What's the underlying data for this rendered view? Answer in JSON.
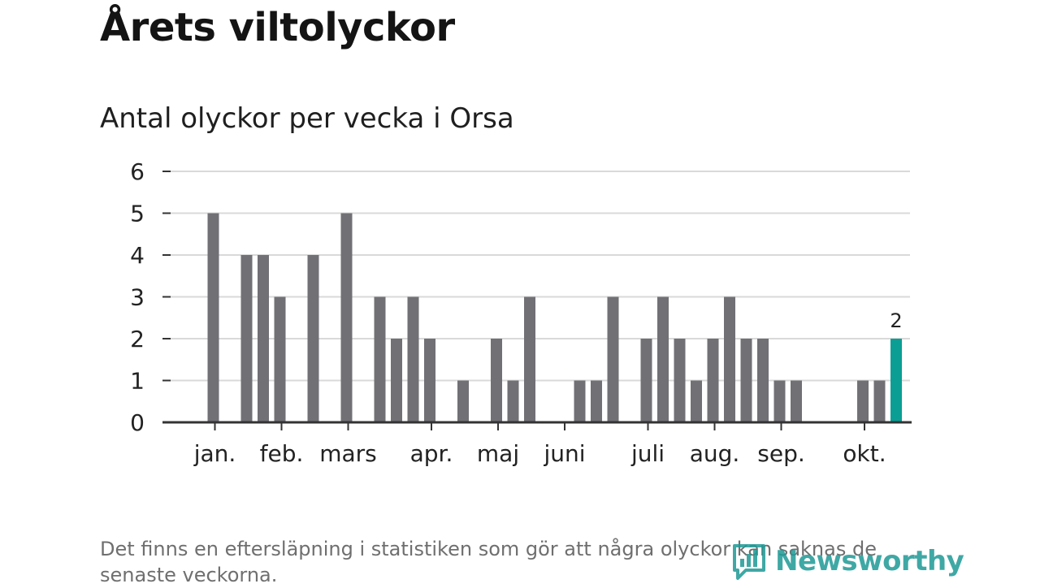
{
  "title": "Årets viltolyckor",
  "subtitle": "Antal olyckor per vecka i Orsa",
  "footnote": "Det finns en eftersläpning i statistiken som gör att några olyckor kan saknas de senaste veckorna.",
  "logo": {
    "text": "Newsworthy",
    "icon": "bar-chart-speech-icon"
  },
  "colors": {
    "bar": "#717075",
    "highlight": "#0a9e95",
    "grid": "#d9d9d9",
    "axis": "#333333",
    "logo": "#1e9a96"
  },
  "chart_data": {
    "type": "bar",
    "title": "Antal olyckor per vecka i Orsa",
    "xlabel": "",
    "ylabel": "",
    "ylim": [
      0,
      6
    ],
    "yticks": [
      0,
      1,
      2,
      3,
      4,
      5,
      6
    ],
    "grid": true,
    "weeks": [
      1,
      2,
      3,
      4,
      5,
      6,
      7,
      8,
      9,
      10,
      11,
      12,
      13,
      14,
      15,
      16,
      17,
      18,
      19,
      20,
      21,
      22,
      23,
      24,
      25,
      26,
      27,
      28,
      29,
      30,
      31,
      32,
      33,
      34,
      35,
      36,
      37,
      38,
      39,
      40,
      41,
      42,
      43,
      44
    ],
    "values": [
      0,
      5,
      0,
      4,
      4,
      3,
      0,
      4,
      0,
      5,
      0,
      3,
      2,
      3,
      2,
      0,
      1,
      0,
      2,
      1,
      3,
      0,
      0,
      1,
      1,
      3,
      0,
      2,
      3,
      2,
      1,
      2,
      3,
      2,
      2,
      1,
      1,
      0,
      0,
      0,
      1,
      1,
      2,
      0
    ],
    "highlight_week": 43,
    "annotation": {
      "week": 43,
      "text": "2"
    },
    "months": [
      {
        "label": "jan.",
        "week": 2
      },
      {
        "label": "feb.",
        "week": 6
      },
      {
        "label": "mars",
        "week": 10
      },
      {
        "label": "apr.",
        "week": 15
      },
      {
        "label": "maj",
        "week": 19
      },
      {
        "label": "juni",
        "week": 23
      },
      {
        "label": "juli",
        "week": 28
      },
      {
        "label": "aug.",
        "week": 32
      },
      {
        "label": "sep.",
        "week": 36
      },
      {
        "label": "okt.",
        "week": 41
      }
    ]
  }
}
